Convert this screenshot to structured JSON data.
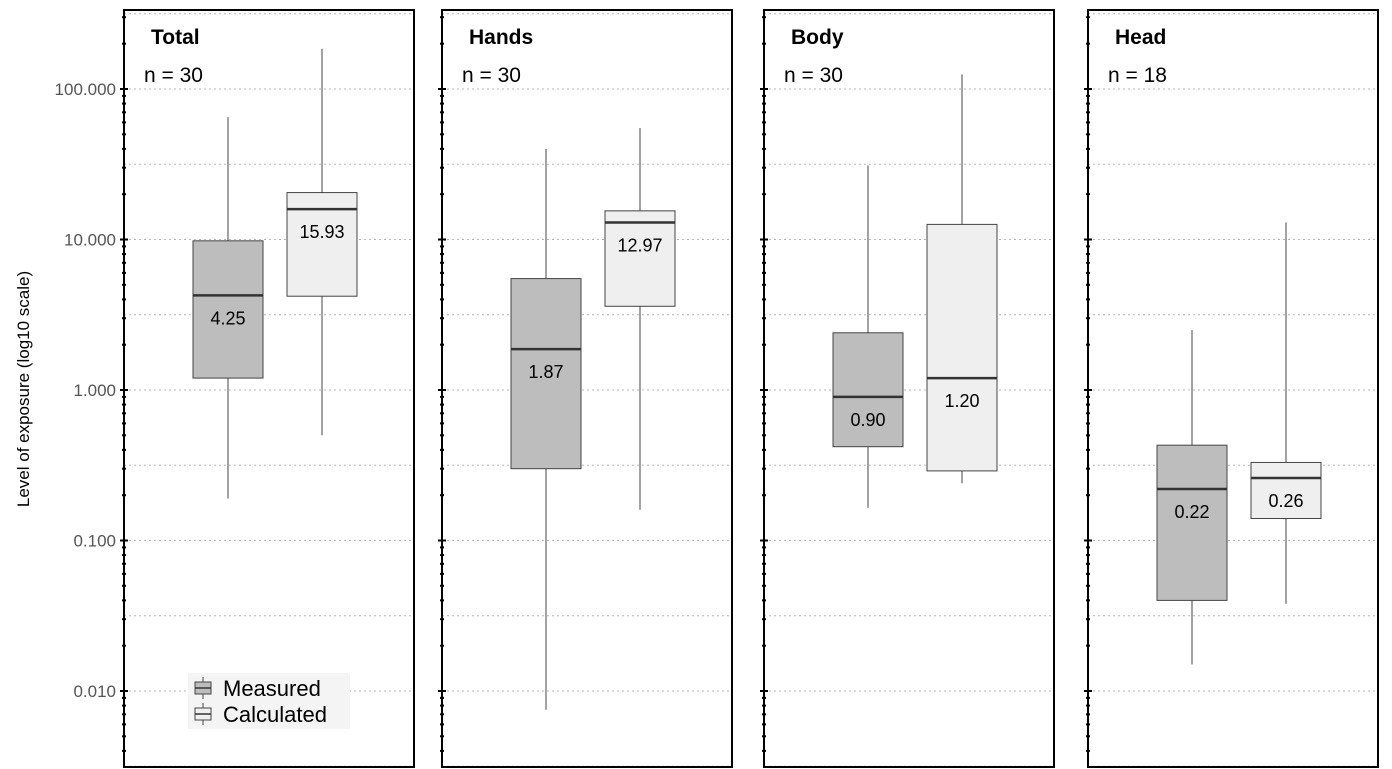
{
  "chart_data": {
    "type": "boxplot",
    "ylabel": "Level of exposure (log10 scale)",
    "yscale": "log10",
    "ylim": [
      0.003,
      400
    ],
    "yticks": [
      {
        "value": 0.01,
        "label": "0.010"
      },
      {
        "value": 0.1,
        "label": "0.100"
      },
      {
        "value": 1,
        "label": "1.000"
      },
      {
        "value": 10,
        "label": "10.000"
      },
      {
        "value": 100,
        "label": "100.000"
      }
    ],
    "grid": true,
    "legend": {
      "placement": "bottom-left",
      "entries": [
        {
          "label": "Measured",
          "color": "#bdbdbd"
        },
        {
          "label": "Calculated",
          "color": "#efefef"
        }
      ]
    },
    "series_colors": {
      "Measured": "#bdbdbd",
      "Calculated": "#efefef"
    },
    "panels": [
      {
        "title": "Total",
        "n_label": "n = 30",
        "boxes": [
          {
            "series": "Measured",
            "whisker_low": 0.19,
            "q1": 1.2,
            "median": 4.25,
            "q3": 9.8,
            "whisker_high": 65,
            "median_label": "4.25"
          },
          {
            "series": "Calculated",
            "whisker_low": 0.5,
            "q1": 4.2,
            "median": 15.93,
            "q3": 20.5,
            "whisker_high": 185,
            "median_label": "15.93"
          }
        ]
      },
      {
        "title": "Hands",
        "n_label": "n = 30",
        "boxes": [
          {
            "series": "Measured",
            "whisker_low": 0.0075,
            "q1": 0.3,
            "median": 1.87,
            "q3": 5.5,
            "whisker_high": 40,
            "median_label": "1.87"
          },
          {
            "series": "Calculated",
            "whisker_low": 0.16,
            "q1": 3.6,
            "median": 12.97,
            "q3": 15.5,
            "whisker_high": 55,
            "median_label": "12.97"
          }
        ]
      },
      {
        "title": "Body",
        "n_label": "n = 30",
        "boxes": [
          {
            "series": "Measured",
            "whisker_low": 0.165,
            "q1": 0.42,
            "median": 0.9,
            "q3": 2.4,
            "whisker_high": 31,
            "median_label": "0.90"
          },
          {
            "series": "Calculated",
            "whisker_low": 0.24,
            "q1": 0.29,
            "median": 1.2,
            "q3": 12.6,
            "whisker_high": 125,
            "median_label": "1.20"
          }
        ]
      },
      {
        "title": "Head",
        "n_label": "n = 18",
        "boxes": [
          {
            "series": "Measured",
            "whisker_low": 0.015,
            "q1": 0.04,
            "median": 0.22,
            "q3": 0.43,
            "whisker_high": 2.5,
            "median_label": "0.22"
          },
          {
            "series": "Calculated",
            "whisker_low": 0.038,
            "q1": 0.14,
            "median": 0.26,
            "q3": 0.33,
            "whisker_high": 13,
            "median_label": "0.26"
          }
        ]
      }
    ]
  }
}
